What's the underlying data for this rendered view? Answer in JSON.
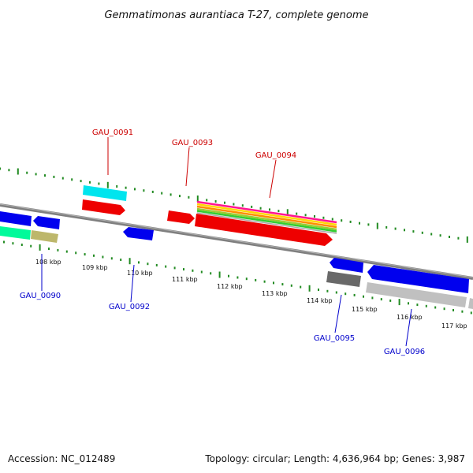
{
  "title": "Gemmatimonas aurantiaca T-27, complete genome",
  "footer": {
    "accession": "Accession: NC_012489",
    "summary": "Topology: circular; Length: 4,636,964 bp; Genes: 3,987"
  },
  "colors": {
    "forward_label": "#cc0000",
    "reverse_label": "#0000cc",
    "ticks": "#228b22",
    "backbone": "#7f7f7f"
  },
  "ruler": {
    "ticks": [
      "108 kbp",
      "109 kbp",
      "110 kbp",
      "111 kbp",
      "112 kbp",
      "113 kbp",
      "114 kbp",
      "115 kbp",
      "116 kbp",
      "117 kbp"
    ]
  },
  "genes": {
    "forward_labels": [
      "GAU_0091",
      "GAU_0093",
      "GAU_0094"
    ],
    "reverse_labels": [
      "GAU_0090",
      "GAU_0092",
      "GAU_0095",
      "GAU_0096"
    ]
  },
  "features": {
    "blocks": [
      {
        "color": "#00e5ee",
        "row": "forward-upper"
      },
      {
        "color": "#ee0000",
        "row": "forward"
      },
      {
        "color": "#ee0000",
        "row": "forward"
      },
      {
        "color": "#ee0000",
        "row": "forward"
      },
      {
        "color": "#0000ee",
        "row": "reverse"
      },
      {
        "color": "#0000ee",
        "row": "reverse"
      },
      {
        "color": "#0000ee",
        "row": "reverse"
      },
      {
        "color": "#0000ee",
        "row": "reverse"
      },
      {
        "color": "#0000ee",
        "row": "reverse"
      },
      {
        "color": "#00fa9a",
        "row": "reverse-lower"
      },
      {
        "color": "#bdb76b",
        "row": "reverse-lower"
      },
      {
        "color": "#696969",
        "row": "reverse-lower"
      },
      {
        "color": "#c0c0c0",
        "row": "reverse-lower"
      },
      {
        "color": "#c0c0c0",
        "row": "reverse-lower"
      }
    ],
    "stripe_colors": [
      "#ff1493",
      "#ffd700",
      "#ff8c00",
      "#9acd32",
      "#32cd32",
      "#a9a9a9"
    ]
  }
}
